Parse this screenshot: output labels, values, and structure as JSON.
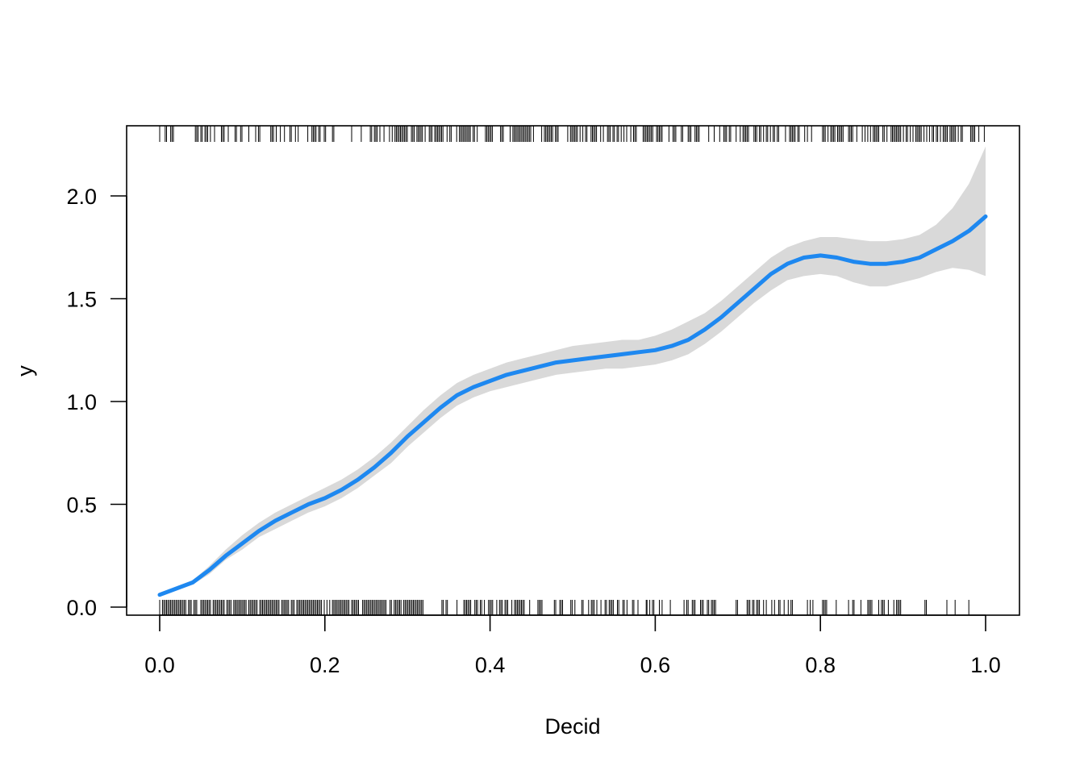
{
  "chart_data": {
    "type": "line",
    "title": "",
    "xlabel": "Decid",
    "ylabel": "y",
    "xlim": [
      0.0,
      1.0
    ],
    "ylim": [
      0.0,
      2.2
    ],
    "x_ticks": [
      "0.0",
      "0.2",
      "0.4",
      "0.6",
      "0.8",
      "1.0"
    ],
    "y_ticks": [
      "0.0",
      "0.5",
      "1.0",
      "1.5",
      "2.0"
    ],
    "grid": false,
    "legend": "none",
    "series": [
      {
        "style": "fitted-line",
        "color": "#1e88f0",
        "x": [
          0.0,
          0.04,
          0.06,
          0.08,
          0.1,
          0.12,
          0.14,
          0.16,
          0.18,
          0.2,
          0.22,
          0.24,
          0.26,
          0.28,
          0.3,
          0.32,
          0.34,
          0.36,
          0.38,
          0.4,
          0.42,
          0.44,
          0.46,
          0.48,
          0.5,
          0.52,
          0.54,
          0.56,
          0.58,
          0.6,
          0.62,
          0.64,
          0.66,
          0.68,
          0.7,
          0.72,
          0.74,
          0.76,
          0.78,
          0.8,
          0.82,
          0.84,
          0.86,
          0.88,
          0.9,
          0.92,
          0.94,
          0.96,
          0.98,
          1.0
        ],
        "y": [
          0.06,
          0.12,
          0.18,
          0.25,
          0.31,
          0.37,
          0.42,
          0.46,
          0.5,
          0.53,
          0.57,
          0.62,
          0.68,
          0.75,
          0.83,
          0.9,
          0.97,
          1.03,
          1.07,
          1.1,
          1.13,
          1.15,
          1.17,
          1.19,
          1.2,
          1.21,
          1.22,
          1.23,
          1.24,
          1.25,
          1.27,
          1.3,
          1.35,
          1.41,
          1.48,
          1.55,
          1.62,
          1.67,
          1.7,
          1.71,
          1.7,
          1.68,
          1.67,
          1.67,
          1.68,
          1.7,
          1.74,
          1.78,
          1.83,
          1.9
        ]
      },
      {
        "style": "confidence-band",
        "color": "#d9d9d9",
        "x": [
          0.0,
          0.04,
          0.06,
          0.08,
          0.1,
          0.12,
          0.14,
          0.16,
          0.18,
          0.2,
          0.22,
          0.24,
          0.26,
          0.28,
          0.3,
          0.32,
          0.34,
          0.36,
          0.38,
          0.4,
          0.42,
          0.44,
          0.46,
          0.48,
          0.5,
          0.52,
          0.54,
          0.56,
          0.58,
          0.6,
          0.62,
          0.64,
          0.66,
          0.68,
          0.7,
          0.72,
          0.74,
          0.76,
          0.78,
          0.8,
          0.82,
          0.84,
          0.86,
          0.88,
          0.9,
          0.92,
          0.94,
          0.96,
          0.98,
          1.0
        ],
        "lower": [
          0.05,
          0.11,
          0.16,
          0.23,
          0.28,
          0.34,
          0.38,
          0.42,
          0.46,
          0.49,
          0.53,
          0.58,
          0.64,
          0.7,
          0.78,
          0.85,
          0.92,
          0.98,
          1.02,
          1.05,
          1.07,
          1.09,
          1.11,
          1.13,
          1.14,
          1.15,
          1.16,
          1.16,
          1.17,
          1.18,
          1.2,
          1.23,
          1.28,
          1.34,
          1.41,
          1.48,
          1.54,
          1.59,
          1.61,
          1.62,
          1.61,
          1.58,
          1.56,
          1.56,
          1.58,
          1.6,
          1.63,
          1.65,
          1.64,
          1.61
        ],
        "upper": [
          0.07,
          0.13,
          0.2,
          0.28,
          0.35,
          0.41,
          0.46,
          0.5,
          0.54,
          0.58,
          0.62,
          0.67,
          0.73,
          0.8,
          0.88,
          0.96,
          1.03,
          1.09,
          1.13,
          1.16,
          1.19,
          1.21,
          1.23,
          1.25,
          1.27,
          1.28,
          1.29,
          1.3,
          1.3,
          1.32,
          1.35,
          1.39,
          1.43,
          1.49,
          1.56,
          1.63,
          1.7,
          1.75,
          1.78,
          1.8,
          1.8,
          1.79,
          1.78,
          1.78,
          1.79,
          1.81,
          1.86,
          1.94,
          2.06,
          2.24
        ]
      }
    ],
    "rug": {
      "color": "#000000",
      "bottom_x_ranges": [
        [
          0.0,
          0.32
        ],
        [
          0.34,
          0.59
        ],
        [
          0.59,
          0.9
        ],
        [
          0.9,
          1.0
        ]
      ],
      "bottom_density": [
        0.9,
        0.55,
        0.35,
        0.12
      ],
      "top_x_ranges": [
        [
          0.0,
          0.25
        ],
        [
          0.25,
          0.6
        ],
        [
          0.6,
          1.0
        ]
      ],
      "top_density": [
        0.35,
        0.6,
        0.55
      ]
    }
  }
}
